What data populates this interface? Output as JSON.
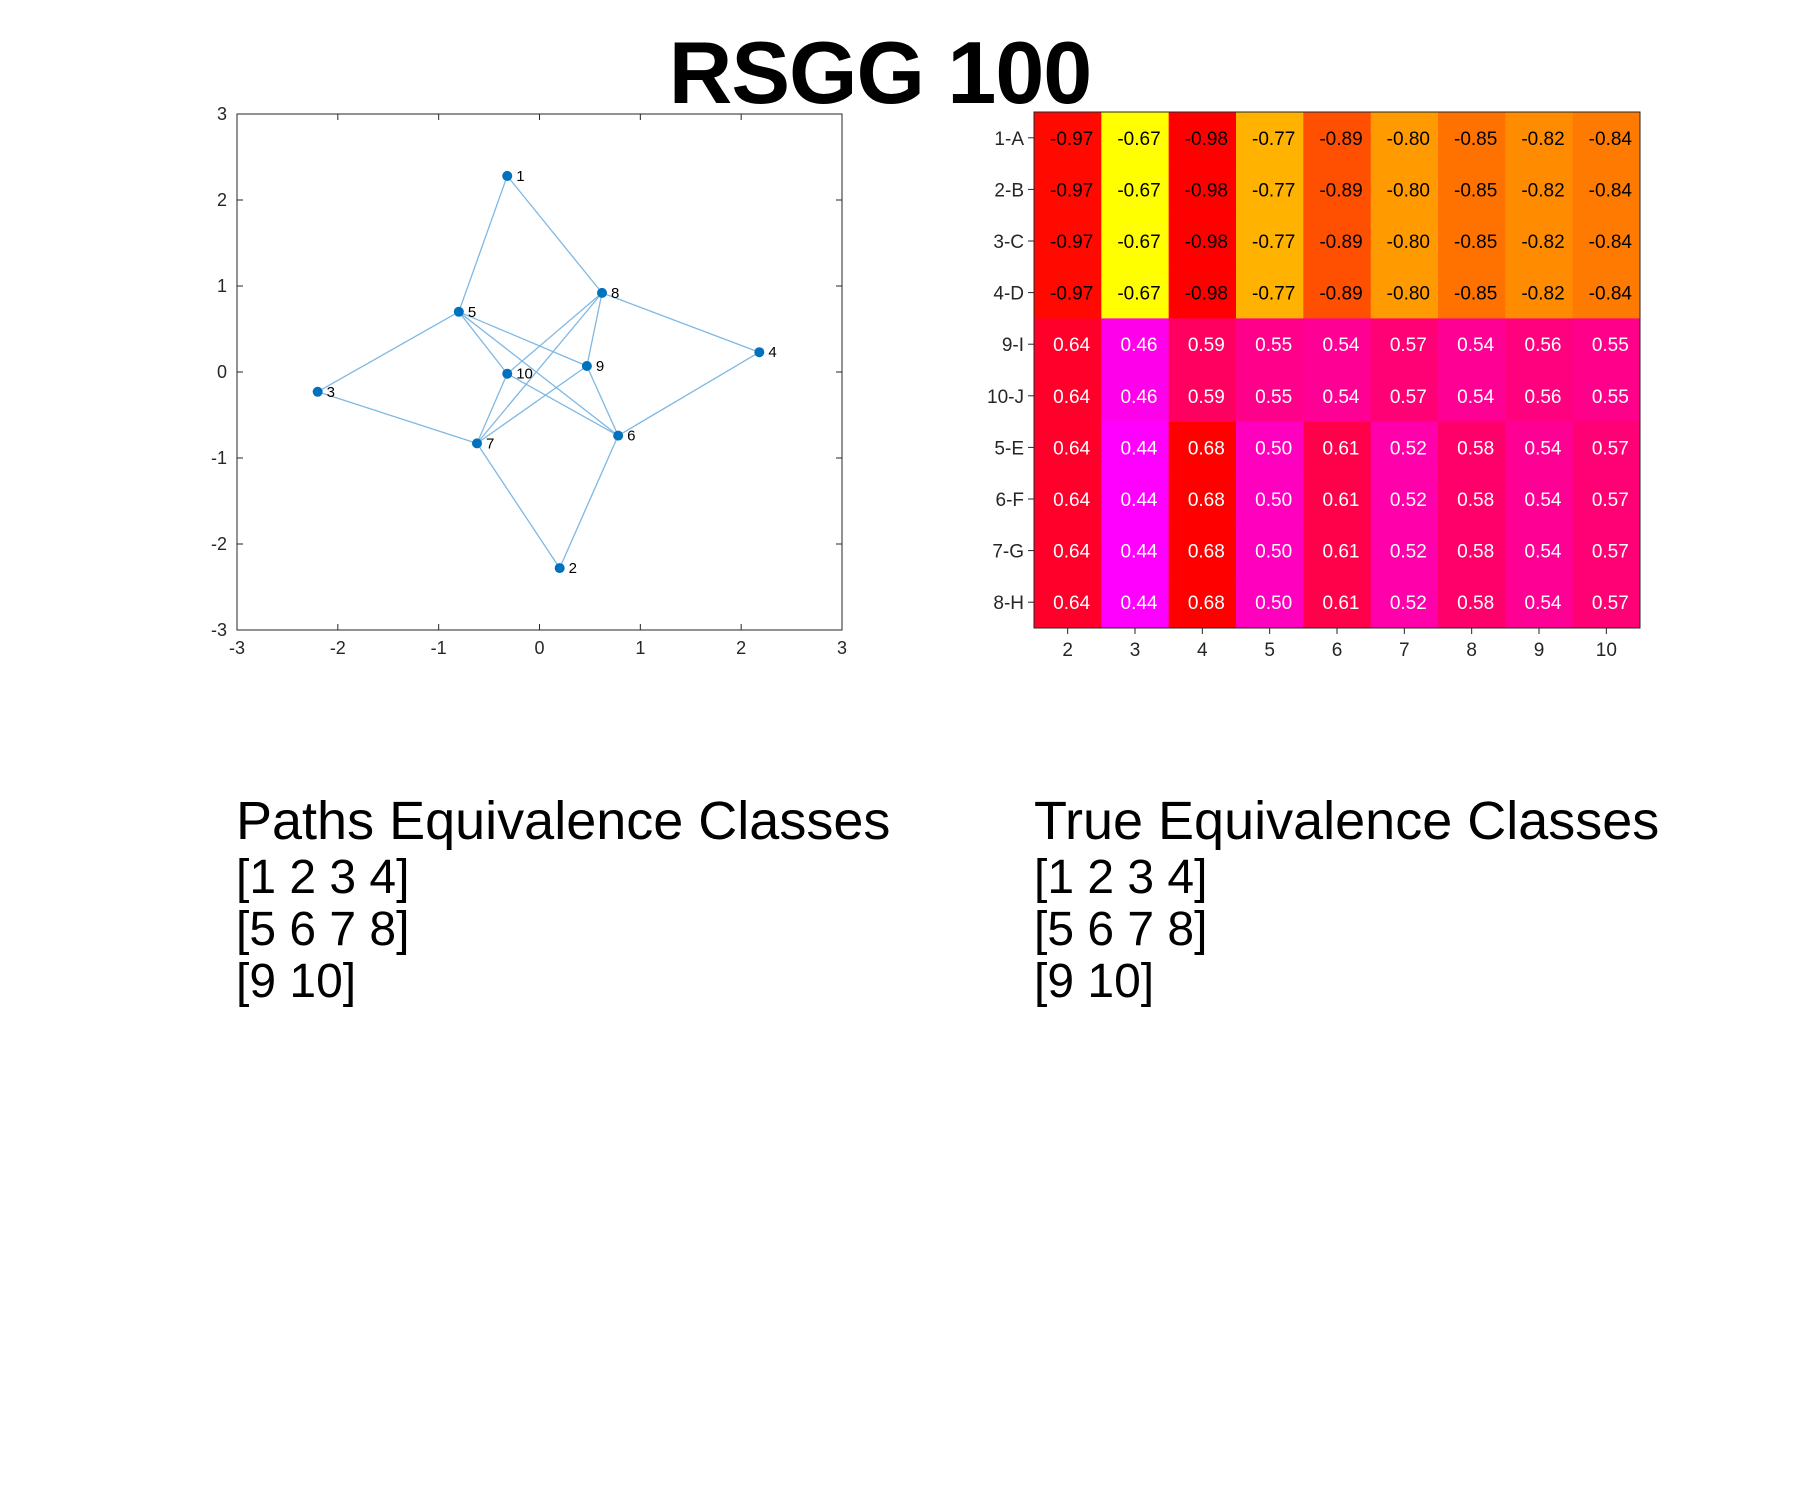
{
  "title": "RSGG 100",
  "chart_data": [
    {
      "type": "scatter",
      "subtype": "graph",
      "xlim": [
        -3,
        3
      ],
      "ylim": [
        -3,
        3
      ],
      "xticks": [
        -3,
        -2,
        -1,
        0,
        1,
        2,
        3
      ],
      "yticks": [
        -3,
        -2,
        -1,
        0,
        1,
        2,
        3
      ],
      "grid": false,
      "node_color": "#0072BD",
      "edge_color": "#7fb8e3",
      "nodes": [
        {
          "label": "1",
          "x": -0.32,
          "y": 2.28
        },
        {
          "label": "2",
          "x": 0.2,
          "y": -2.28
        },
        {
          "label": "3",
          "x": -2.2,
          "y": -0.23
        },
        {
          "label": "4",
          "x": 2.18,
          "y": 0.23
        },
        {
          "label": "5",
          "x": -0.8,
          "y": 0.7
        },
        {
          "label": "6",
          "x": 0.78,
          "y": -0.74
        },
        {
          "label": "7",
          "x": -0.62,
          "y": -0.83
        },
        {
          "label": "8",
          "x": 0.62,
          "y": 0.92
        },
        {
          "label": "9",
          "x": 0.47,
          "y": 0.07
        },
        {
          "label": "10",
          "x": -0.32,
          "y": -0.02
        }
      ],
      "edges": [
        [
          "1",
          "5"
        ],
        [
          "1",
          "8"
        ],
        [
          "3",
          "5"
        ],
        [
          "3",
          "7"
        ],
        [
          "4",
          "8"
        ],
        [
          "4",
          "6"
        ],
        [
          "2",
          "7"
        ],
        [
          "2",
          "6"
        ],
        [
          "5",
          "9"
        ],
        [
          "5",
          "6"
        ],
        [
          "5",
          "10"
        ],
        [
          "8",
          "7"
        ],
        [
          "8",
          "10"
        ],
        [
          "8",
          "9"
        ],
        [
          "9",
          "7"
        ],
        [
          "9",
          "6"
        ],
        [
          "10",
          "7"
        ],
        [
          "10",
          "6"
        ]
      ]
    },
    {
      "type": "heatmap",
      "row_labels": [
        "1-A",
        "2-B",
        "3-C",
        "4-D",
        "9-I",
        "10-J",
        "5-E",
        "6-F",
        "7-G",
        "8-H"
      ],
      "col_labels": [
        "2",
        "3",
        "4",
        "5",
        "6",
        "7",
        "8",
        "9",
        "10"
      ],
      "values": [
        [
          "-0.97",
          "-0.67",
          "-0.98",
          "-0.77",
          "-0.89",
          "-0.80",
          "-0.85",
          "-0.82",
          "-0.84"
        ],
        [
          "-0.97",
          "-0.67",
          "-0.98",
          "-0.77",
          "-0.89",
          "-0.80",
          "-0.85",
          "-0.82",
          "-0.84"
        ],
        [
          "-0.97",
          "-0.67",
          "-0.98",
          "-0.77",
          "-0.89",
          "-0.80",
          "-0.85",
          "-0.82",
          "-0.84"
        ],
        [
          "-0.97",
          "-0.67",
          "-0.98",
          "-0.77",
          "-0.89",
          "-0.80",
          "-0.85",
          "-0.82",
          "-0.84"
        ],
        [
          "0.64",
          "0.46",
          "0.59",
          "0.55",
          "0.54",
          "0.57",
          "0.54",
          "0.56",
          "0.55"
        ],
        [
          "0.64",
          "0.46",
          "0.59",
          "0.55",
          "0.54",
          "0.57",
          "0.54",
          "0.56",
          "0.55"
        ],
        [
          "0.64",
          "0.44",
          "0.68",
          "0.50",
          "0.61",
          "0.52",
          "0.58",
          "0.54",
          "0.57"
        ],
        [
          "0.64",
          "0.44",
          "0.68",
          "0.50",
          "0.61",
          "0.52",
          "0.58",
          "0.54",
          "0.57"
        ],
        [
          "0.64",
          "0.44",
          "0.68",
          "0.50",
          "0.61",
          "0.52",
          "0.58",
          "0.54",
          "0.57"
        ],
        [
          "0.64",
          "0.44",
          "0.68",
          "0.50",
          "0.61",
          "0.52",
          "0.58",
          "0.54",
          "0.57"
        ]
      ],
      "colors": {
        "negative_high": "#ff0000",
        "negative_mid": "#ff8c00",
        "negative_low": "#ffff00",
        "positive_high": "#ff0000",
        "positive_low": "#ff00ff"
      },
      "negative_text_color": "#000000",
      "positive_text_color": "#ffffff"
    }
  ],
  "paths_classes": {
    "heading": "Paths Equivalence Classes",
    "items": [
      "[1 2 3 4]",
      "[5 6 7 8]",
      "[9 10]"
    ]
  },
  "true_classes": {
    "heading": "True Equivalence Classes",
    "items": [
      "[1 2 3 4]",
      "[5 6 7 8]",
      "[9 10]"
    ]
  }
}
